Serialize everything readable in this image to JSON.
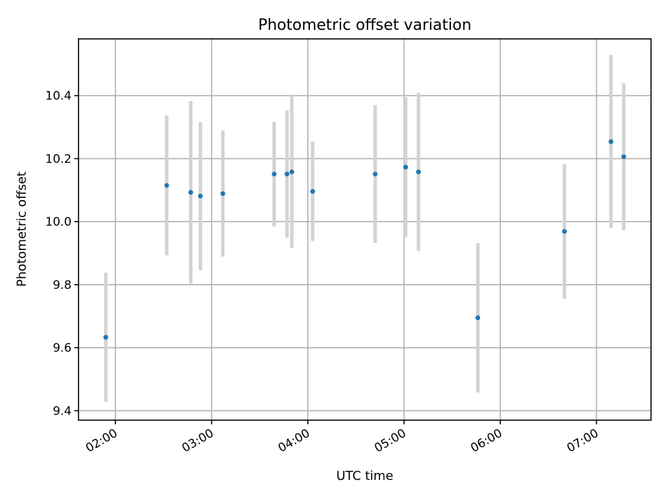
{
  "chart_data": {
    "type": "scatter",
    "title": "Photometric offset variation",
    "xlabel": "UTC time",
    "ylabel": "Photometric offset",
    "x_axis": "time",
    "xlim": [
      "01:37",
      "07:34"
    ],
    "ylim": [
      9.37,
      10.58
    ],
    "x_ticks": [
      "02:00",
      "03:00",
      "04:00",
      "05:00",
      "06:00",
      "07:00"
    ],
    "y_ticks": [
      9.4,
      9.6,
      9.8,
      10.0,
      10.2,
      10.4
    ],
    "y_tick_labels": [
      "9.4",
      "9.6",
      "9.8",
      "10.0",
      "10.2",
      "10.4"
    ],
    "grid": true,
    "marker_color": "#1f77b4",
    "errorbar_color": "#d3d3d3",
    "series": [
      {
        "points": [
          {
            "x": "01:54",
            "y": 9.633,
            "yerr": 0.205
          },
          {
            "x": "02:32",
            "y": 10.115,
            "yerr": 0.222
          },
          {
            "x": "02:47",
            "y": 10.093,
            "yerr": 0.29
          },
          {
            "x": "02:53",
            "y": 10.081,
            "yerr": 0.235
          },
          {
            "x": "03:07",
            "y": 10.089,
            "yerr": 0.2
          },
          {
            "x": "03:39",
            "y": 10.151,
            "yerr": 0.166
          },
          {
            "x": "03:47",
            "y": 10.151,
            "yerr": 0.202
          },
          {
            "x": "03:50",
            "y": 10.158,
            "yerr": 0.242
          },
          {
            "x": "04:03",
            "y": 10.096,
            "yerr": 0.158
          },
          {
            "x": "04:42",
            "y": 10.151,
            "yerr": 0.219
          },
          {
            "x": "05:01",
            "y": 10.173,
            "yerr": 0.222
          },
          {
            "x": "05:09",
            "y": 10.158,
            "yerr": 0.251
          },
          {
            "x": "05:46",
            "y": 9.695,
            "yerr": 0.237
          },
          {
            "x": "06:40",
            "y": 9.969,
            "yerr": 0.213
          },
          {
            "x": "07:09",
            "y": 10.254,
            "yerr": 0.275
          },
          {
            "x": "07:17",
            "y": 10.206,
            "yerr": 0.233
          }
        ]
      }
    ]
  }
}
